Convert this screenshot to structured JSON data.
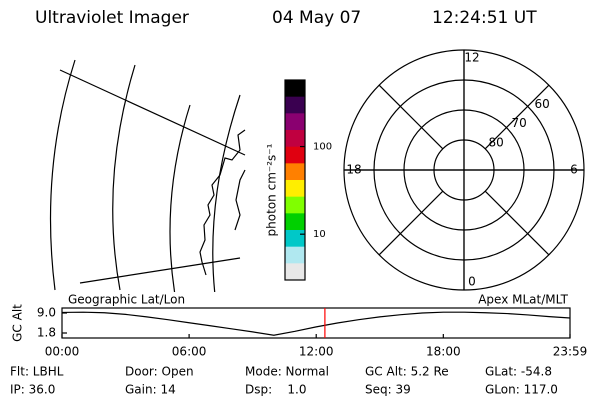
{
  "header": {
    "title": "Ultraviolet Imager",
    "date": "04 May 07",
    "time": "12:24:51 UT"
  },
  "colorbar": {
    "label": "photon cm⁻²s⁻¹",
    "log": true,
    "lim": [
      3,
      575
    ],
    "ticks": [
      10,
      100
    ],
    "colors": [
      "#000000",
      "#3a0050",
      "#8a0070",
      "#c00040",
      "#e00010",
      "#ff8000",
      "#ffee00",
      "#80ff00",
      "#00d000",
      "#00c8c8",
      "#b0e8f0",
      "#e8e8e8"
    ]
  },
  "polar": {
    "rlim": [
      50,
      90
    ],
    "rings": [
      60,
      70,
      80
    ],
    "mlt_labels": [
      12,
      18,
      6,
      0
    ]
  },
  "map_labels": {
    "left": "Geographic Lat/Lon",
    "right": "Apex MLat/MLT"
  },
  "chart_data": {
    "type": "line",
    "y_label": "GC Alt",
    "x": [
      0,
      1,
      2,
      3,
      4,
      5,
      6,
      7,
      8,
      9,
      10,
      11,
      12,
      13,
      14,
      15,
      16,
      17,
      18,
      19,
      20,
      21,
      22,
      23,
      23.98
    ],
    "series": [
      {
        "color": "#000000",
        "values": [
          9.2,
          9.3,
          9.1,
          8.5,
          7.6,
          6.6,
          5.5,
          4.4,
          3.3,
          2.2,
          1.0,
          2.4,
          4.0,
          5.4,
          6.6,
          7.6,
          8.4,
          9.0,
          9.3,
          9.3,
          9.1,
          8.8,
          8.3,
          7.7,
          7.2
        ]
      }
    ],
    "xlim": [
      0,
      23.98
    ],
    "xticks": [
      {
        "value": 0,
        "label": "00:00"
      },
      {
        "value": 6,
        "label": "06:00"
      },
      {
        "value": 12,
        "label": "12:00"
      },
      {
        "value": 18,
        "label": "18:00"
      },
      {
        "value": 23.98,
        "label": "23:59"
      }
    ],
    "ylim": [
      0,
      10.8
    ],
    "yticks": [
      {
        "value": 1.8,
        "label": "1.8"
      },
      {
        "value": 9,
        "label": "9.0"
      }
    ],
    "current_time": 12.41,
    "current_color": "#ff0000"
  },
  "footer": {
    "rows": [
      [
        "Flt: LBHL",
        "Door: Open",
        "Mode: Normal",
        "GC Alt: 5.2 Re",
        "GLat: -54.8"
      ],
      [
        "IP: 36.0",
        "Gain: 14",
        "Dsp:    1.0",
        "Seq: 39",
        "GLon: 117.0"
      ]
    ]
  }
}
